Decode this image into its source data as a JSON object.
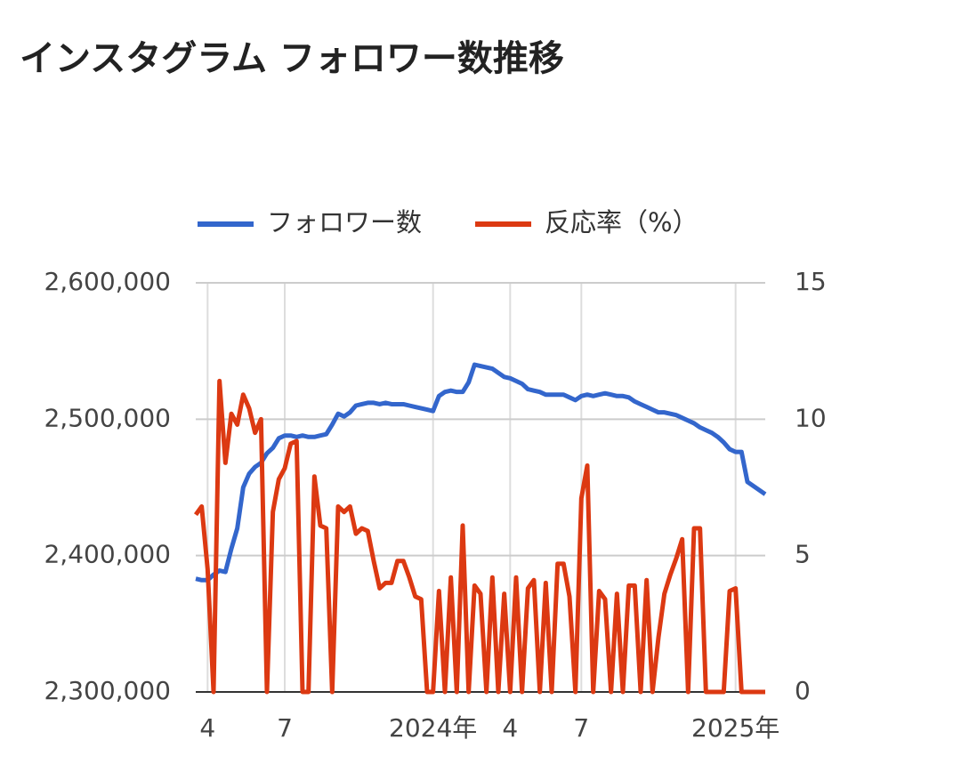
{
  "chart_data": {
    "type": "line",
    "title": "インスタグラム フォロワー数推移",
    "categories": [
      null,
      null,
      "4",
      null,
      null,
      null,
      null,
      null,
      null,
      null,
      null,
      null,
      null,
      null,
      null,
      "7",
      null,
      null,
      null,
      null,
      null,
      null,
      null,
      null,
      null,
      null,
      null,
      null,
      null,
      null,
      null,
      null,
      null,
      null,
      null,
      null,
      null,
      null,
      null,
      null,
      "2024年",
      null,
      null,
      null,
      null,
      null,
      null,
      null,
      null,
      null,
      null,
      null,
      null,
      "4",
      null,
      null,
      null,
      null,
      null,
      null,
      null,
      null,
      null,
      null,
      null,
      "7",
      null,
      null,
      null,
      null,
      null,
      null,
      null,
      null,
      null,
      null,
      null,
      null,
      null,
      null,
      null,
      null,
      null,
      null,
      null,
      null,
      null,
      null,
      null,
      null,
      null,
      "2025年",
      null,
      null,
      null,
      null,
      null
    ],
    "series": [
      {
        "name": "フォロワー数",
        "color": "#3366cc",
        "values": [
          2383000,
          2382000,
          2382000,
          2386000,
          2389000,
          2388000,
          2405000,
          2420000,
          2450000,
          2460000,
          2465000,
          2468000,
          2475000,
          2479000,
          2486000,
          2488000,
          2488000,
          2487000,
          2488000,
          2487000,
          2487000,
          2488000,
          2489000,
          2496000,
          2504000,
          2502000,
          2505000,
          2510000,
          2511000,
          2512000,
          2512000,
          2511000,
          2512000,
          2511000,
          2511000,
          2511000,
          2510000,
          2509000,
          2508000,
          2507000,
          2506000,
          2517000,
          2520000,
          2521000,
          2520000,
          2520000,
          2527000,
          2540000,
          2539000,
          2538000,
          2537000,
          2534000,
          2531000,
          2530000,
          2528000,
          2526000,
          2522000,
          2521000,
          2520000,
          2518000,
          2518000,
          2518000,
          2518000,
          2516000,
          2514000,
          2517000,
          2518000,
          2517000,
          2518000,
          2519000,
          2518000,
          2517000,
          2517000,
          2516000,
          2513000,
          2511000,
          2509000,
          2507000,
          2505000,
          2505000,
          2504000,
          2503000,
          2501000,
          2499000,
          2497000,
          2494000,
          2492000,
          2490000,
          2487000,
          2483000,
          2478000,
          2476000,
          2476000,
          2454000,
          2451000,
          2448000,
          2445000
        ]
      },
      {
        "name": "反応率（%）",
        "color": "#dc3912",
        "axis": "y2",
        "values": [
          6.5,
          6.8,
          4.5,
          0,
          11.4,
          8.4,
          10.2,
          9.8,
          10.9,
          10.4,
          9.5,
          10.0,
          0,
          6.6,
          7.8,
          8.2,
          9.1,
          9.2,
          0,
          0,
          7.9,
          6.1,
          6.0,
          0,
          6.8,
          6.6,
          6.8,
          5.8,
          6.0,
          5.9,
          4.8,
          3.8,
          4.0,
          4.0,
          4.8,
          4.8,
          4.2,
          3.5,
          3.4,
          0,
          0,
          3.7,
          0,
          4.2,
          0,
          6.1,
          0,
          3.9,
          3.6,
          0,
          4.2,
          0,
          3.6,
          0,
          4.2,
          0,
          3.8,
          4.1,
          0,
          4.0,
          0,
          4.7,
          4.7,
          3.5,
          0,
          7.1,
          8.3,
          0,
          3.7,
          3.4,
          0,
          3.6,
          0,
          3.9,
          3.9,
          0,
          4.1,
          0,
          2.0,
          3.6,
          4.3,
          4.9,
          5.6,
          0,
          6.0,
          6.0,
          0,
          0,
          0,
          0,
          3.7,
          3.8,
          0,
          0,
          0,
          0,
          0
        ]
      }
    ],
    "ylim": [
      2300000,
      2600000
    ],
    "yticks": [
      {
        "value": 2300000,
        "label": "2,300,000"
      },
      {
        "value": 2400000,
        "label": "2,400,000"
      },
      {
        "value": 2500000,
        "label": "2,500,000"
      },
      {
        "value": 2600000,
        "label": "2,600,000"
      }
    ],
    "y2lim": [
      0,
      15
    ],
    "y2ticks": [
      0,
      5,
      10,
      15
    ],
    "grid": true,
    "legend": "top"
  }
}
